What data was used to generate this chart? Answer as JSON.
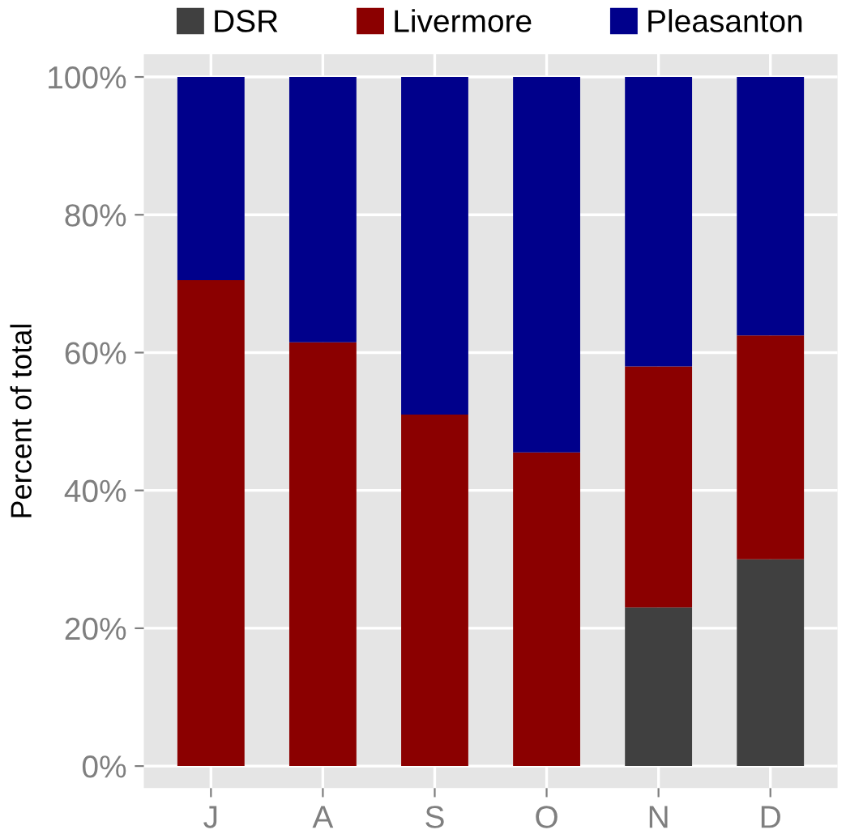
{
  "chart_data": {
    "type": "bar",
    "stacked": true,
    "ylabel": "Percent of total",
    "categories": [
      "J",
      "A",
      "S",
      "O",
      "N",
      "D"
    ],
    "series": [
      {
        "name": "DSR",
        "color": "#404040",
        "values": [
          0,
          0,
          0,
          0,
          23,
          30
        ]
      },
      {
        "name": "Livermore",
        "color": "#8b0000",
        "values": [
          70.5,
          61.5,
          51,
          45.5,
          35,
          32.5
        ]
      },
      {
        "name": "Pleasanton",
        "color": "#00008b",
        "values": [
          29.5,
          38.5,
          49,
          54.5,
          42,
          37.5
        ]
      }
    ],
    "ylim": [
      -3.2,
      103.3
    ],
    "yticks": [
      {
        "value": 0,
        "label": "0%"
      },
      {
        "value": 20,
        "label": "20%"
      },
      {
        "value": 40,
        "label": "40%"
      },
      {
        "value": 60,
        "label": "60%"
      },
      {
        "value": 80,
        "label": "80%"
      },
      {
        "value": 100,
        "label": "100%"
      }
    ],
    "grid": true,
    "legend": "top"
  }
}
